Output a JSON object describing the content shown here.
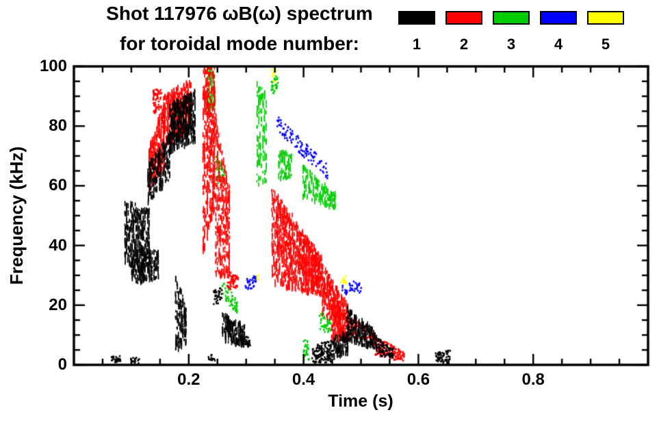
{
  "chart_data": {
    "type": "scatter",
    "title": "Shot 117976 ωB(ω) spectrum",
    "subtitle": "for toroidal mode number:",
    "xlabel": "Time (s)",
    "ylabel": "Frequency (kHz)",
    "xlim": [
      0.0,
      1.0
    ],
    "ylim": [
      0,
      100
    ],
    "x_major_ticks": [
      0.2,
      0.4,
      0.6,
      0.8
    ],
    "x_tick_labels": [
      "0.2",
      "0.4",
      "0.6",
      "0.8"
    ],
    "x_minor_step": 0.05,
    "y_major_ticks": [
      0,
      20,
      40,
      60,
      80,
      100
    ],
    "y_tick_labels": [
      "0",
      "20",
      "40",
      "60",
      "80",
      "100"
    ],
    "y_minor_step": 5,
    "grid": false,
    "legend_position": "top-right",
    "series": [
      {
        "name": "1",
        "color": "#000000",
        "features": [
          {
            "kind": "streaks",
            "t": [
              0.088,
              0.132
            ],
            "f_lo": [
              34,
              30
            ],
            "f_hi": [
              55,
              52
            ],
            "density": 320
          },
          {
            "kind": "streaks",
            "t": [
              0.1,
              0.148
            ],
            "f_lo": [
              27,
              29
            ],
            "f_hi": [
              40,
              38
            ],
            "density": 200
          },
          {
            "kind": "streaks",
            "t": [
              0.128,
              0.168
            ],
            "f_lo": [
              54,
              62
            ],
            "f_hi": [
              67,
              78
            ],
            "density": 200
          },
          {
            "kind": "streaks",
            "t": [
              0.166,
              0.212
            ],
            "f_lo": [
              71,
              75
            ],
            "f_hi": [
              87,
              92
            ],
            "density": 420
          },
          {
            "kind": "streaks",
            "t": [
              0.176,
              0.196
            ],
            "f_lo": [
              5,
              6
            ],
            "f_hi": [
              33,
              18
            ],
            "density": 130
          },
          {
            "kind": "dots",
            "t": [
              0.243,
              0.258
            ],
            "f_lo": [
              19,
              21
            ],
            "f_hi": [
              25,
              26
            ],
            "density": 35
          },
          {
            "kind": "streaks",
            "t": [
              0.258,
              0.298
            ],
            "f_lo": [
              8,
              6
            ],
            "f_hi": [
              17,
              13
            ],
            "density": 170
          },
          {
            "kind": "dots",
            "t": [
              0.295,
              0.308
            ],
            "f_lo": [
              6,
              6
            ],
            "f_hi": [
              10,
              9
            ],
            "density": 35
          },
          {
            "kind": "dots",
            "t": [
              0.415,
              0.452
            ],
            "f_lo": [
              0.5,
              1
            ],
            "f_hi": [
              6,
              9
            ],
            "density": 150
          },
          {
            "kind": "streaks",
            "t": [
              0.452,
              0.478
            ],
            "f_lo": [
              2,
              4
            ],
            "f_hi": [
              9,
              11
            ],
            "density": 90
          },
          {
            "kind": "streaks",
            "t": [
              0.475,
              0.528
            ],
            "f_lo": [
              8,
              5
            ],
            "f_hi": [
              19,
              11
            ],
            "density": 220
          },
          {
            "kind": "dots",
            "t": [
              0.528,
              0.556
            ],
            "f_lo": [
              3,
              2
            ],
            "f_hi": [
              9,
              6
            ],
            "density": 80
          },
          {
            "kind": "dots",
            "t": [
              0.63,
              0.656
            ],
            "f_lo": [
              0.5,
              0.5
            ],
            "f_hi": [
              4,
              5
            ],
            "density": 55
          },
          {
            "kind": "dots",
            "t": [
              0.064,
              0.082
            ],
            "f_lo": [
              0.5,
              0.5
            ],
            "f_hi": [
              3,
              3
            ],
            "density": 28
          },
          {
            "kind": "dots",
            "t": [
              0.098,
              0.118
            ],
            "f_lo": [
              0.5,
              0.5
            ],
            "f_hi": [
              2.5,
              2.5
            ],
            "density": 16
          },
          {
            "kind": "dots",
            "t": [
              0.234,
              0.246
            ],
            "f_lo": [
              1,
              1
            ],
            "f_hi": [
              3.5,
              3.5
            ],
            "density": 14
          }
        ]
      },
      {
        "name": "2",
        "color": "#ff0000",
        "features": [
          {
            "kind": "streaks",
            "t": [
              0.13,
              0.158
            ],
            "f_lo": [
              58,
              66
            ],
            "f_hi": [
              73,
              88
            ],
            "density": 260
          },
          {
            "kind": "dots",
            "t": [
              0.138,
              0.152
            ],
            "f_lo": [
              84,
              86
            ],
            "f_hi": [
              92,
              93
            ],
            "density": 60
          },
          {
            "kind": "streaks",
            "t": [
              0.155,
              0.205
            ],
            "f_lo": [
              73,
              78
            ],
            "f_hi": [
              90,
              96
            ],
            "density": 380
          },
          {
            "kind": "streaks",
            "t": [
              0.224,
              0.246
            ],
            "f_lo": [
              36,
              52
            ],
            "f_hi": [
              100,
              100
            ],
            "density": 420
          },
          {
            "kind": "streaks",
            "t": [
              0.246,
              0.272
            ],
            "f_lo": [
              29,
              30
            ],
            "f_hi": [
              84,
              58
            ],
            "density": 300
          },
          {
            "kind": "dots",
            "t": [
              0.268,
              0.286
            ],
            "f_lo": [
              25,
              26
            ],
            "f_hi": [
              32,
              30
            ],
            "density": 55
          },
          {
            "kind": "streaks",
            "t": [
              0.344,
              0.432
            ],
            "f_lo": [
              27,
              23
            ],
            "f_hi": [
              60,
              36
            ],
            "density": 650
          },
          {
            "kind": "streaks",
            "t": [
              0.352,
              0.462
            ],
            "f_lo": [
              38,
              19
            ],
            "f_hi": [
              56,
              25
            ],
            "density": 320
          },
          {
            "kind": "streaks",
            "t": [
              0.432,
              0.478
            ],
            "f_lo": [
              17,
              13
            ],
            "f_hi": [
              29,
              21
            ],
            "density": 180
          },
          {
            "kind": "streaks",
            "t": [
              0.448,
              0.474
            ],
            "f_lo": [
              8,
              8
            ],
            "f_hi": [
              22,
              17
            ],
            "density": 160
          },
          {
            "kind": "dots",
            "t": [
              0.472,
              0.524
            ],
            "f_lo": [
              9,
              7
            ],
            "f_hi": [
              17,
              11
            ],
            "density": 130
          },
          {
            "kind": "dots",
            "t": [
              0.524,
              0.576
            ],
            "f_lo": [
              3,
              1
            ],
            "f_hi": [
              10,
              4
            ],
            "density": 130
          }
        ]
      },
      {
        "name": "3",
        "color": "#00cc00",
        "features": [
          {
            "kind": "streaks",
            "t": [
              0.232,
              0.246
            ],
            "f_lo": [
              84,
              86
            ],
            "f_hi": [
              100,
              100
            ],
            "density": 70
          },
          {
            "kind": "dots",
            "t": [
              0.247,
              0.262
            ],
            "f_lo": [
              58,
              60
            ],
            "f_hi": [
              70,
              67
            ],
            "density": 45
          },
          {
            "kind": "dots",
            "t": [
              0.258,
              0.286
            ],
            "f_lo": [
              23,
              16
            ],
            "f_hi": [
              29,
              21
            ],
            "density": 55
          },
          {
            "kind": "streaks",
            "t": [
              0.318,
              0.336
            ],
            "f_lo": [
              58,
              62
            ],
            "f_hi": [
              95,
              91
            ],
            "density": 110
          },
          {
            "kind": "dots",
            "t": [
              0.344,
              0.356
            ],
            "f_lo": [
              90,
              92
            ],
            "f_hi": [
              97,
              97
            ],
            "density": 28
          },
          {
            "kind": "streaks",
            "t": [
              0.356,
              0.38
            ],
            "f_lo": [
              62,
              63
            ],
            "f_hi": [
              73,
              70
            ],
            "density": 70
          },
          {
            "kind": "streaks",
            "t": [
              0.398,
              0.456
            ],
            "f_lo": [
              56,
              52
            ],
            "f_hi": [
              67,
              57
            ],
            "density": 150
          },
          {
            "kind": "dots",
            "t": [
              0.428,
              0.448
            ],
            "f_lo": [
              11,
              11
            ],
            "f_hi": [
              19,
              15
            ],
            "density": 45
          },
          {
            "kind": "dots",
            "t": [
              0.4,
              0.41
            ],
            "f_lo": [
              1,
              1
            ],
            "f_hi": [
              9,
              8
            ],
            "density": 28
          }
        ]
      },
      {
        "name": "4",
        "color": "#0000ff",
        "features": [
          {
            "kind": "dots",
            "t": [
              0.354,
              0.442
            ],
            "f_lo": [
              78,
              62
            ],
            "f_hi": [
              84,
              67
            ],
            "density": 110
          },
          {
            "kind": "dots",
            "t": [
              0.298,
              0.32
            ],
            "f_lo": [
              25,
              26
            ],
            "f_hi": [
              29,
              30
            ],
            "density": 30
          },
          {
            "kind": "dots",
            "t": [
              0.466,
              0.502
            ],
            "f_lo": [
              23,
              24
            ],
            "f_hi": [
              28,
              28
            ],
            "density": 38
          }
        ]
      },
      {
        "name": "5",
        "color": "#ffff00",
        "features": [
          {
            "kind": "dots",
            "t": [
              0.344,
              0.354
            ],
            "f_lo": [
              94,
              95
            ],
            "f_hi": [
              99,
              99
            ],
            "density": 14
          },
          {
            "kind": "dots",
            "t": [
              0.462,
              0.474
            ],
            "f_lo": [
              26,
              27
            ],
            "f_hi": [
              30,
              30
            ],
            "density": 12
          },
          {
            "kind": "dots",
            "t": [
              0.316,
              0.322
            ],
            "f_lo": [
              28,
              28
            ],
            "f_hi": [
              30,
              30
            ],
            "density": 6
          }
        ]
      }
    ]
  }
}
